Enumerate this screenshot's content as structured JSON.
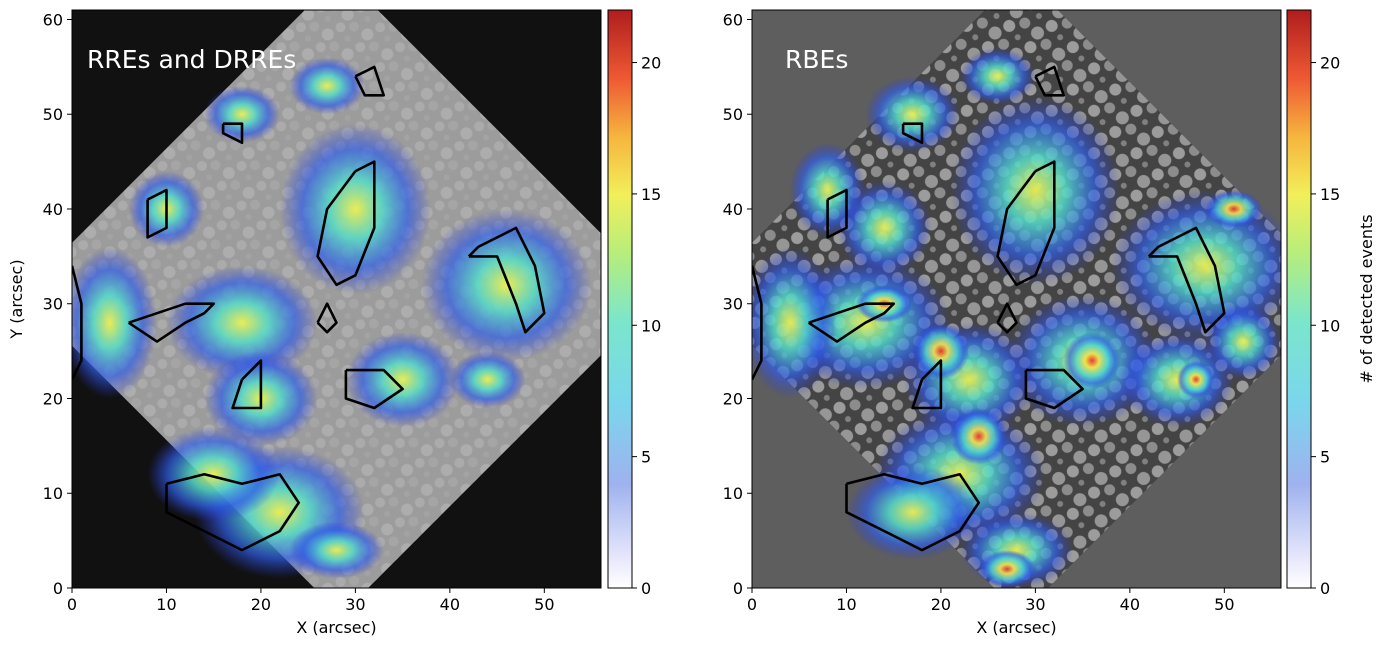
{
  "chart_data": [
    {
      "type": "heatmap",
      "title": "RREs and DRREs",
      "xlabel": "X (arcsec)",
      "ylabel": "Y (arcsec)",
      "xlim": [
        0,
        56
      ],
      "ylim": [
        0,
        61
      ],
      "xticks": [
        0,
        10,
        20,
        30,
        40,
        50
      ],
      "yticks": [
        0,
        10,
        20,
        30,
        40,
        50,
        60
      ],
      "background": "#111111",
      "map_color": "#9b9b9b",
      "colorbar": {
        "label": "",
        "range": [
          0,
          22
        ],
        "ticks": [
          0,
          5,
          10,
          15,
          20
        ]
      }
    },
    {
      "type": "heatmap",
      "title": "RBEs",
      "xlabel": "X (arcsec)",
      "ylabel": "",
      "xlim": [
        0,
        56
      ],
      "ylim": [
        0,
        61
      ],
      "xticks": [
        0,
        10,
        20,
        30,
        40,
        50
      ],
      "yticks": [
        0,
        10,
        20,
        30,
        40,
        50,
        60
      ],
      "background": "#5e5e5e",
      "map_color": "#8a8a8a",
      "colorbar": {
        "label": "# of detected events",
        "range": [
          0,
          22
        ],
        "ticks": [
          0,
          5,
          10,
          15,
          20
        ]
      }
    }
  ]
}
